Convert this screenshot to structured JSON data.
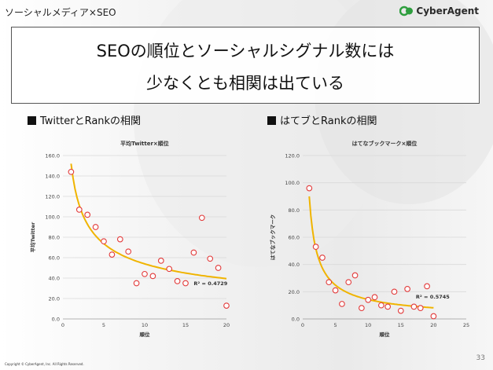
{
  "header": {
    "slide_tag": "ソーシャルメディア×SEO",
    "logo_text": "CyberAgent"
  },
  "title": {
    "line1": "SEOの順位とソーシャルシグナル数には",
    "line2": "少なくとも相関は出ている"
  },
  "sections": [
    {
      "heading": "TwitterとRankの相関"
    },
    {
      "heading": "はてブとRankの相関"
    }
  ],
  "footer": {
    "page_number": "33",
    "copyright": "Copyright © CyberAgent, Inc. All Rights Reserved."
  },
  "colors": {
    "point": "#e23a3a",
    "trend": "#f0b400",
    "grid": "#d9d9d9"
  },
  "chart_data": [
    {
      "type": "scatter",
      "title": "平均Twitter×順位",
      "xlabel": "順位",
      "ylabel": "平均Twitter",
      "xlim": [
        0,
        20
      ],
      "ylim": [
        0,
        160
      ],
      "xticks": [
        "0",
        "5",
        "10",
        "15",
        "20"
      ],
      "yticks": [
        "0.0",
        "20.0",
        "40.0",
        "60.0",
        "80.0",
        "100.0",
        "120.0",
        "140.0",
        "160.0"
      ],
      "points": [
        [
          1,
          144
        ],
        [
          2,
          107
        ],
        [
          3,
          102
        ],
        [
          4,
          90
        ],
        [
          5,
          76
        ],
        [
          6,
          63
        ],
        [
          7,
          78
        ],
        [
          8,
          66
        ],
        [
          9,
          35
        ],
        [
          10,
          44
        ],
        [
          11,
          42
        ],
        [
          12,
          57
        ],
        [
          13,
          49
        ],
        [
          14,
          37
        ],
        [
          15,
          35
        ],
        [
          16,
          65
        ],
        [
          17,
          99
        ],
        [
          18,
          59
        ],
        [
          19,
          50
        ],
        [
          20,
          13
        ]
      ],
      "trendline": {
        "type": "power",
        "a": 152,
        "b": -0.45
      },
      "annotation": "R² = 0.4729"
    },
    {
      "type": "scatter",
      "title": "はてなブックマーク×順位",
      "xlabel": "順位",
      "ylabel": "はてなブックマーク",
      "xlim": [
        0,
        25
      ],
      "ylim": [
        0,
        120
      ],
      "xticks": [
        "0",
        "5",
        "10",
        "15",
        "20",
        "25"
      ],
      "yticks": [
        "0.0",
        "20.0",
        "40.0",
        "60.0",
        "80.0",
        "100.0",
        "120.0"
      ],
      "points": [
        [
          1,
          96
        ],
        [
          2,
          53
        ],
        [
          3,
          45
        ],
        [
          4,
          27
        ],
        [
          5,
          21
        ],
        [
          6,
          11
        ],
        [
          7,
          27
        ],
        [
          8,
          32
        ],
        [
          9,
          8
        ],
        [
          10,
          14
        ],
        [
          11,
          16
        ],
        [
          12,
          10
        ],
        [
          13,
          9
        ],
        [
          14,
          20
        ],
        [
          15,
          6
        ],
        [
          16,
          22
        ],
        [
          17,
          9
        ],
        [
          18,
          8
        ],
        [
          19,
          24
        ],
        [
          20,
          2
        ]
      ],
      "trendline": {
        "type": "power",
        "a": 90,
        "b": -0.8
      },
      "annotation": "R² = 0.5745"
    }
  ]
}
